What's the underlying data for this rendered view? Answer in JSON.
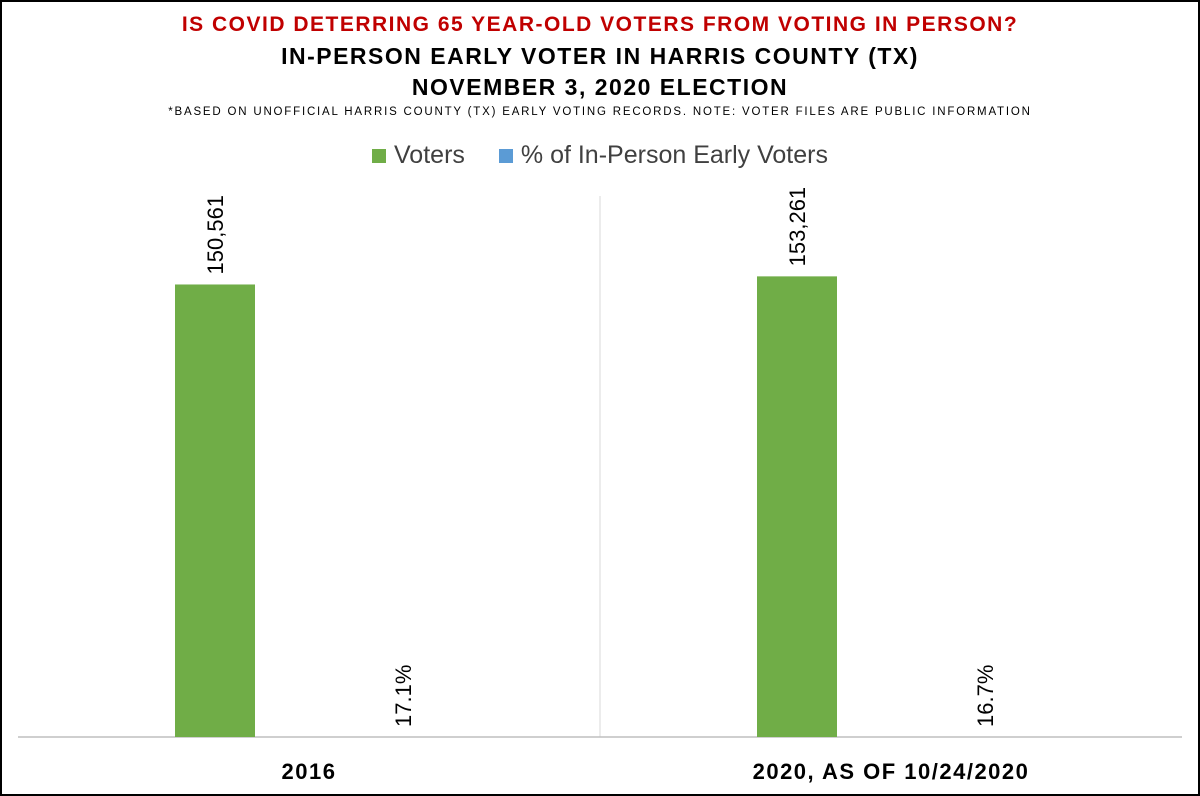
{
  "titles": {
    "line1": "IS COVID DETERRING 65 YEAR-OLD VOTERS FROM VOTING IN PERSON?",
    "line2": "IN-PERSON EARLY VOTER IN HARRIS COUNTY (TX)",
    "line3": "NOVEMBER 3, 2020 ELECTION",
    "note": "*BASED ON UNOFFICIAL HARRIS COUNTY (TX) EARLY VOTING RECORDS. NOTE: VOTER FILES ARE PUBLIC INFORMATION"
  },
  "colors": {
    "title_accent": "#c00000",
    "voters": "#70ad47",
    "percent": "#5b9bd5",
    "gridline": "#d9d9d9",
    "axis": "#bfbfbf"
  },
  "chart_data": {
    "type": "bar",
    "categories": [
      "2016",
      "2020, AS OF 10/24/2020"
    ],
    "series": [
      {
        "name": "Voters",
        "values": [
          150561,
          153261
        ],
        "labels": [
          "150,561",
          "153,261"
        ],
        "color": "#70ad47",
        "axis": "primary",
        "axis_range": [
          0,
          180000
        ]
      },
      {
        "name": "% of In-Person Early Voters",
        "values": [
          17.1,
          16.7
        ],
        "labels": [
          "17.1%",
          "16.7%"
        ],
        "color": "#5b9bd5",
        "axis": "secondary"
      }
    ],
    "legend_position": "top",
    "grid": "vertical separator between categories",
    "data_label_orientation": "vertical"
  }
}
